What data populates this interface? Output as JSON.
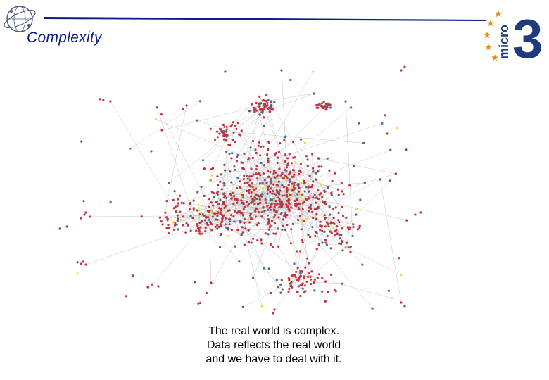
{
  "slide": {
    "title": "Complexity",
    "caption_lines": [
      "The real world is complex.",
      "Data reflects the real world",
      "and we have to deal with it."
    ],
    "logo_text": "micro",
    "logo_number": "3"
  },
  "colors": {
    "title": "#0b1e86",
    "header_line": "#0b1e86",
    "logo_blue": "#1f3a7d",
    "logo_star": "#e88a1a",
    "node_red": "#c0343f",
    "node_blue": "#3a6fa8",
    "node_yellow": "#f2d640",
    "edge": "#b9b9b9"
  },
  "icons": {
    "left_logo": "globe-orbit-logo-icon",
    "right_logo": "micro3-star-logo-icon"
  }
}
